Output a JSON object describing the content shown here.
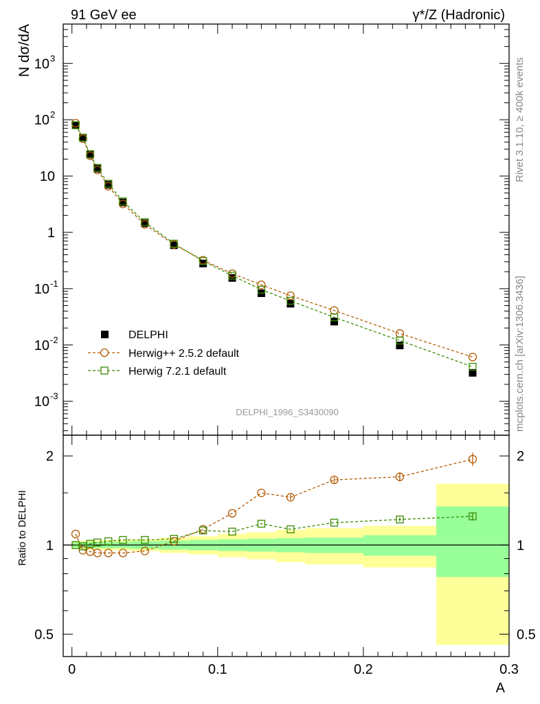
{
  "header": {
    "left": "91 GeV ee",
    "right_main": "γ*/Z (Hadronic)",
    "side_rivet": "Rivet 3.1.10, ≥ 400k events",
    "side_mcplots": "mcplots.cern.ch [arXiv:1306.3436]",
    "analysis_id": "DELPHI_1996_S3430090"
  },
  "chart_data": [
    {
      "type": "scatter",
      "panel": "main",
      "ylabel": "N dσ/dA",
      "yscale": "log",
      "ylim": [
        0.00025,
        5000
      ],
      "xlim": [
        -0.006,
        0.3
      ],
      "y_ticks": [
        {
          "v": 0.001,
          "label": "10",
          "exp": "-3"
        },
        {
          "v": 0.01,
          "label": "10",
          "exp": "-2"
        },
        {
          "v": 0.1,
          "label": "10",
          "exp": "-1"
        },
        {
          "v": 1,
          "label": "1",
          "exp": ""
        },
        {
          "v": 10,
          "label": "10",
          "exp": ""
        },
        {
          "v": 100,
          "label": "10",
          "exp": "2"
        },
        {
          "v": 1000,
          "label": "10",
          "exp": "3"
        }
      ],
      "legend_position": "lower-left",
      "series": [
        {
          "name": "DELPHI",
          "marker": "filled-square",
          "color": "#000000",
          "x": [
            0.0025,
            0.0075,
            0.0125,
            0.0175,
            0.025,
            0.035,
            0.05,
            0.07,
            0.09,
            0.11,
            0.13,
            0.15,
            0.18,
            0.225,
            0.275
          ],
          "y": [
            80,
            48,
            24,
            13.5,
            7,
            3.4,
            1.45,
            0.59,
            0.28,
            0.155,
            0.083,
            0.054,
            0.026,
            0.0098,
            0.0032
          ]
        },
        {
          "name": "Herwig++ 2.5.2 default",
          "marker": "open-circle",
          "color": "#b35900",
          "x": [
            0.0025,
            0.0075,
            0.0125,
            0.0175,
            0.025,
            0.035,
            0.05,
            0.07,
            0.09,
            0.11,
            0.13,
            0.15,
            0.18,
            0.225,
            0.275
          ],
          "y": [
            87,
            46,
            23,
            12.8,
            6.6,
            3.2,
            1.39,
            0.61,
            0.32,
            0.185,
            0.117,
            0.075,
            0.041,
            0.016,
            0.0061
          ]
        },
        {
          "name": "Herwig 7.2.1 default",
          "marker": "open-square",
          "color": "#3a8a00",
          "x": [
            0.0025,
            0.0075,
            0.0125,
            0.0175,
            0.025,
            0.035,
            0.05,
            0.07,
            0.09,
            0.11,
            0.13,
            0.15,
            0.18,
            0.225,
            0.275
          ],
          "y": [
            80,
            48,
            24.5,
            14,
            7.3,
            3.55,
            1.52,
            0.63,
            0.31,
            0.17,
            0.096,
            0.061,
            0.031,
            0.012,
            0.0041
          ]
        }
      ]
    },
    {
      "type": "scatter",
      "panel": "ratio",
      "ylabel": "Ratio to DELPHI",
      "xlabel": "A",
      "yscale": "log",
      "ylim": [
        0.42,
        2.35
      ],
      "xlim": [
        -0.006,
        0.3
      ],
      "y_ticks": [
        {
          "v": 0.5,
          "label": "0.5"
        },
        {
          "v": 1,
          "label": "1"
        },
        {
          "v": 2,
          "label": "2"
        }
      ],
      "x_ticks": [
        {
          "v": 0,
          "label": "0"
        },
        {
          "v": 0.1,
          "label": "0.1"
        },
        {
          "v": 0.2,
          "label": "0.2"
        },
        {
          "v": 0.3,
          "label": "0.3"
        }
      ],
      "bands": {
        "edges": [
          0,
          0.005,
          0.01,
          0.015,
          0.02,
          0.03,
          0.04,
          0.06,
          0.08,
          0.1,
          0.12,
          0.14,
          0.16,
          0.2,
          0.25,
          0.3
        ],
        "stat_lo": [
          0.98,
          0.975,
          0.975,
          0.975,
          0.975,
          0.975,
          0.97,
          0.965,
          0.96,
          0.955,
          0.95,
          0.945,
          0.94,
          0.92,
          0.78
        ],
        "stat_hi": [
          1.02,
          1.025,
          1.025,
          1.025,
          1.025,
          1.025,
          1.03,
          1.035,
          1.04,
          1.045,
          1.05,
          1.055,
          1.06,
          1.08,
          1.35
        ],
        "total_lo": [
          0.97,
          0.965,
          0.965,
          0.965,
          0.96,
          0.96,
          0.955,
          0.94,
          0.93,
          0.91,
          0.895,
          0.875,
          0.86,
          0.84,
          0.46
        ],
        "total_hi": [
          1.03,
          1.035,
          1.035,
          1.035,
          1.04,
          1.04,
          1.045,
          1.06,
          1.07,
          1.09,
          1.105,
          1.125,
          1.14,
          1.16,
          1.61
        ],
        "stat_color": "#99ff99",
        "total_color": "#ffff99"
      },
      "series": [
        {
          "name": "Herwig++ 2.5.2 default",
          "marker": "open-circle",
          "color": "#b35900",
          "x": [
            0.0025,
            0.0075,
            0.0125,
            0.0175,
            0.025,
            0.035,
            0.05,
            0.07,
            0.09,
            0.11,
            0.13,
            0.15,
            0.18,
            0.225,
            0.275
          ],
          "y": [
            1.09,
            0.96,
            0.95,
            0.94,
            0.94,
            0.94,
            0.955,
            1.03,
            1.13,
            1.28,
            1.5,
            1.45,
            1.66,
            1.7,
            1.95
          ],
          "err": [
            0,
            0,
            0,
            0,
            0,
            0,
            0,
            0,
            0,
            0,
            0,
            0.03,
            0.04,
            0.06,
            0.1
          ]
        },
        {
          "name": "Herwig 7.2.1 default",
          "marker": "open-square",
          "color": "#3a8a00",
          "x": [
            0.0025,
            0.0075,
            0.0125,
            0.0175,
            0.025,
            0.035,
            0.05,
            0.07,
            0.09,
            0.11,
            0.13,
            0.15,
            0.18,
            0.225,
            0.275
          ],
          "y": [
            1.0,
            0.99,
            1.01,
            1.02,
            1.03,
            1.04,
            1.04,
            1.05,
            1.12,
            1.11,
            1.18,
            1.13,
            1.19,
            1.22,
            1.25
          ],
          "err": [
            0,
            0,
            0,
            0,
            0,
            0,
            0,
            0,
            0,
            0,
            0,
            0,
            0,
            0.02,
            0.04
          ]
        }
      ]
    }
  ]
}
